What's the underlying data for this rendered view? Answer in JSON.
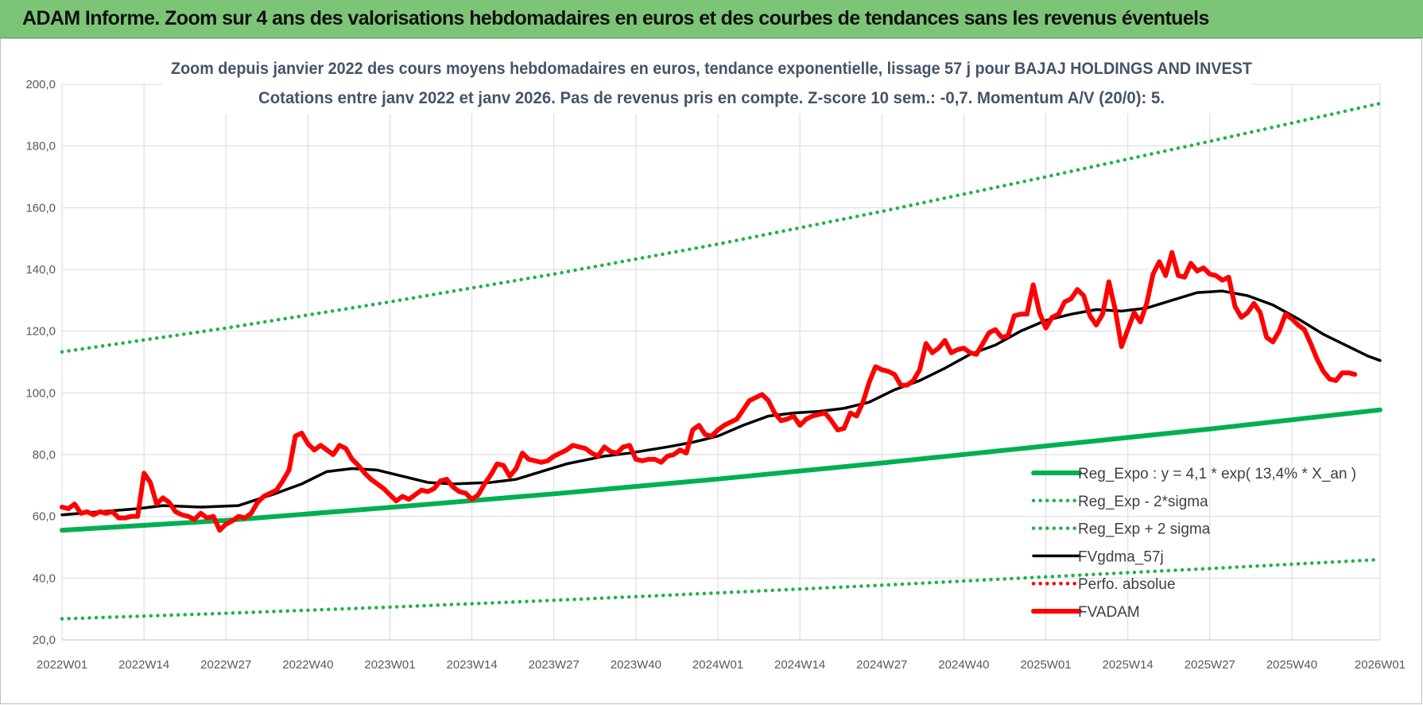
{
  "banner": {
    "title": "ADAM Informe. Zoom sur 4 ans des valorisations hebdomadaires en euros et des courbes de tendances sans les revenus éventuels"
  },
  "colors": {
    "banner": "#7cc576",
    "trend": "#00b050",
    "band": "#22b24c",
    "moving_average": "#000000",
    "price": "#ff0000",
    "grid": "#d9d9d9"
  },
  "chart_data": {
    "type": "line",
    "title": "Zoom depuis janvier 2022 des cours moyens hebdomadaires en euros, tendance exponentielle, lissage 57 j pour BAJAJ HOLDINGS AND INVEST",
    "subtitle": "Cotations entre janv 2022 et janv 2026. Pas de revenus pris en compte. Z-score 10 sem.: -0,7. Momentum A/V (20/0): 5.",
    "xlabel": "",
    "ylabel": "",
    "x_unit": "weeks since 2022W01",
    "x_range": [
      0,
      209
    ],
    "ylim": [
      20,
      200
    ],
    "yticks": [
      "20,0",
      "40,0",
      "60,0",
      "80,0",
      "100,0",
      "120,0",
      "140,0",
      "160,0",
      "180,0",
      "200,0"
    ],
    "yticks_values": [
      20,
      40,
      60,
      80,
      100,
      120,
      140,
      160,
      180,
      200
    ],
    "xticks": [
      "2022W01",
      "2022W14",
      "2022W27",
      "2022W40",
      "2023W01",
      "2023W14",
      "2023W27",
      "2023W40",
      "2024W01",
      "2024W14",
      "2024W27",
      "2024W40",
      "2025W01",
      "2025W14",
      "2025W27",
      "2025W40",
      "2026W01"
    ],
    "xticks_positions": [
      0,
      13,
      26,
      39,
      52,
      65,
      78,
      91,
      104,
      117,
      130,
      143,
      156,
      169,
      182,
      195,
      209
    ],
    "grid": true,
    "legend_position": "bottom-right",
    "series": [
      {
        "name": "Reg_Expo : y = 4,1 * exp( 13,4% *  X_an )",
        "style": "solid-thick",
        "color": "#00b050",
        "points": [
          [
            0,
            55.5
          ],
          [
            26,
            58.7
          ],
          [
            52,
            62.9
          ],
          [
            78,
            67.3
          ],
          [
            104,
            72.1
          ],
          [
            130,
            77.3
          ],
          [
            156,
            82.8
          ],
          [
            182,
            88.3
          ],
          [
            209,
            94.5
          ]
        ]
      },
      {
        "name": "Reg_Exp - 2*sigma",
        "style": "dotted",
        "color": "#22b24c",
        "points": [
          [
            0,
            26.8
          ],
          [
            26,
            28.6
          ],
          [
            52,
            30.6
          ],
          [
            78,
            32.8
          ],
          [
            104,
            35.2
          ],
          [
            130,
            37.7
          ],
          [
            156,
            40.4
          ],
          [
            182,
            43.1
          ],
          [
            209,
            46.0
          ]
        ]
      },
      {
        "name": "Reg_Exp + 2 sigma",
        "style": "dotted",
        "color": "#22b24c",
        "points": [
          [
            0,
            113.3
          ],
          [
            26,
            121.0
          ],
          [
            52,
            129.5
          ],
          [
            78,
            138.5
          ],
          [
            104,
            148.2
          ],
          [
            130,
            158.8
          ],
          [
            156,
            170.0
          ],
          [
            182,
            181.5
          ],
          [
            209,
            193.8
          ]
        ]
      },
      {
        "name": "FVgdma_57j",
        "style": "solid",
        "color": "#000000",
        "points": [
          [
            0,
            60.5
          ],
          [
            6,
            61.5
          ],
          [
            12,
            62.5
          ],
          [
            16,
            63.5
          ],
          [
            22,
            63.0
          ],
          [
            28,
            63.5
          ],
          [
            34,
            67.5
          ],
          [
            38,
            70.5
          ],
          [
            42,
            74.5
          ],
          [
            46,
            75.5
          ],
          [
            50,
            75.0
          ],
          [
            54,
            73.0
          ],
          [
            58,
            71.0
          ],
          [
            62,
            70.5
          ],
          [
            68,
            71.0
          ],
          [
            72,
            72.0
          ],
          [
            76,
            74.5
          ],
          [
            80,
            77.0
          ],
          [
            86,
            79.5
          ],
          [
            90,
            80.5
          ],
          [
            96,
            82.5
          ],
          [
            100,
            84.0
          ],
          [
            104,
            86.0
          ],
          [
            108,
            89.5
          ],
          [
            112,
            92.5
          ],
          [
            116,
            93.5
          ],
          [
            120,
            94.0
          ],
          [
            124,
            95.0
          ],
          [
            128,
            97.0
          ],
          [
            132,
            101.0
          ],
          [
            136,
            104.0
          ],
          [
            140,
            108.0
          ],
          [
            144,
            112.5
          ],
          [
            148,
            115.5
          ],
          [
            152,
            120.0
          ],
          [
            156,
            123.5
          ],
          [
            160,
            125.5
          ],
          [
            164,
            127.0
          ],
          [
            168,
            126.5
          ],
          [
            172,
            127.5
          ],
          [
            176,
            130.0
          ],
          [
            180,
            132.5
          ],
          [
            184,
            133.0
          ],
          [
            188,
            131.5
          ],
          [
            192,
            128.5
          ],
          [
            196,
            124.0
          ],
          [
            200,
            119.0
          ],
          [
            204,
            115.0
          ],
          [
            207,
            112.0
          ],
          [
            209,
            110.5
          ]
        ]
      },
      {
        "name": "Perfo. absolue",
        "style": "dotted",
        "color": "#ff0000",
        "points": []
      },
      {
        "name": "FVADAM",
        "style": "solid-thick",
        "color": "#ff0000",
        "points": [
          [
            0,
            63
          ],
          [
            1,
            62.5
          ],
          [
            2,
            64
          ],
          [
            3,
            61
          ],
          [
            4,
            61.5
          ],
          [
            5,
            60.5
          ],
          [
            6,
            61.5
          ],
          [
            7,
            61
          ],
          [
            8,
            61.5
          ],
          [
            9,
            59.5
          ],
          [
            10,
            59.5
          ],
          [
            11,
            60
          ],
          [
            12,
            60
          ],
          [
            13,
            74
          ],
          [
            14,
            71
          ],
          [
            15,
            64
          ],
          [
            16,
            66
          ],
          [
            17,
            64.5
          ],
          [
            18,
            61.5
          ],
          [
            19,
            60.5
          ],
          [
            20,
            60
          ],
          [
            21,
            59
          ],
          [
            22,
            61
          ],
          [
            23,
            59.5
          ],
          [
            24,
            60
          ],
          [
            25,
            55.5
          ],
          [
            26,
            57.5
          ],
          [
            27,
            58.5
          ],
          [
            28,
            60
          ],
          [
            29,
            59.5
          ],
          [
            30,
            61
          ],
          [
            31,
            64.5
          ],
          [
            32,
            66.5
          ],
          [
            33,
            67.5
          ],
          [
            34,
            68.5
          ],
          [
            35,
            71.5
          ],
          [
            36,
            75
          ],
          [
            37,
            86
          ],
          [
            38,
            87
          ],
          [
            39,
            83.5
          ],
          [
            40,
            81.5
          ],
          [
            41,
            83
          ],
          [
            42,
            81.5
          ],
          [
            43,
            80
          ],
          [
            44,
            83
          ],
          [
            45,
            82
          ],
          [
            46,
            78.5
          ],
          [
            47,
            76.5
          ],
          [
            48,
            74
          ],
          [
            49,
            72
          ],
          [
            50,
            70.5
          ],
          [
            51,
            69
          ],
          [
            52,
            67
          ],
          [
            53,
            65
          ],
          [
            54,
            66.5
          ],
          [
            55,
            65.5
          ],
          [
            56,
            67
          ],
          [
            57,
            68.5
          ],
          [
            58,
            68
          ],
          [
            59,
            69
          ],
          [
            60,
            71.5
          ],
          [
            61,
            72
          ],
          [
            62,
            69.5
          ],
          [
            63,
            68
          ],
          [
            64,
            67.5
          ],
          [
            65,
            65.5
          ],
          [
            66,
            67
          ],
          [
            67,
            70.5
          ],
          [
            68,
            73.5
          ],
          [
            69,
            77
          ],
          [
            70,
            76.5
          ],
          [
            71,
            73
          ],
          [
            72,
            75.5
          ],
          [
            73,
            80.5
          ],
          [
            74,
            78.5
          ],
          [
            75,
            78
          ],
          [
            76,
            77.5
          ],
          [
            77,
            78
          ],
          [
            78,
            79.5
          ],
          [
            79,
            80.5
          ],
          [
            80,
            81.5
          ],
          [
            81,
            83
          ],
          [
            82,
            82.5
          ],
          [
            83,
            82
          ],
          [
            84,
            80.5
          ],
          [
            85,
            79.5
          ],
          [
            86,
            82.5
          ],
          [
            87,
            81
          ],
          [
            88,
            80.5
          ],
          [
            89,
            82.5
          ],
          [
            90,
            83
          ],
          [
            91,
            78.5
          ],
          [
            92,
            78
          ],
          [
            93,
            78.5
          ],
          [
            94,
            78.5
          ],
          [
            95,
            77.5
          ],
          [
            96,
            79.5
          ],
          [
            97,
            80
          ],
          [
            98,
            81.5
          ],
          [
            99,
            80.5
          ],
          [
            100,
            88
          ],
          [
            101,
            89.5
          ],
          [
            102,
            86.5
          ],
          [
            103,
            86
          ],
          [
            104,
            88
          ],
          [
            105,
            89.5
          ],
          [
            106,
            90.5
          ],
          [
            107,
            91.5
          ],
          [
            108,
            94.5
          ],
          [
            109,
            97.5
          ],
          [
            110,
            98.5
          ],
          [
            111,
            99.5
          ],
          [
            112,
            97.5
          ],
          [
            113,
            93.5
          ],
          [
            114,
            91
          ],
          [
            115,
            91.5
          ],
          [
            116,
            92.5
          ],
          [
            117,
            89.5
          ],
          [
            118,
            91.5
          ],
          [
            119,
            92.5
          ],
          [
            120,
            93
          ],
          [
            121,
            93.5
          ],
          [
            122,
            91
          ],
          [
            123,
            88
          ],
          [
            124,
            88.5
          ],
          [
            125,
            93.5
          ],
          [
            126,
            92.5
          ],
          [
            127,
            97
          ],
          [
            128,
            103.5
          ],
          [
            129,
            108.5
          ],
          [
            130,
            107.5
          ],
          [
            131,
            107
          ],
          [
            132,
            106
          ],
          [
            133,
            102.5
          ],
          [
            134,
            102.5
          ],
          [
            135,
            104
          ],
          [
            136,
            107.5
          ],
          [
            137,
            116
          ],
          [
            138,
            113
          ],
          [
            139,
            114.5
          ],
          [
            140,
            117
          ],
          [
            141,
            113
          ],
          [
            142,
            114
          ],
          [
            143,
            114.5
          ],
          [
            144,
            113
          ],
          [
            145,
            112.5
          ],
          [
            146,
            116
          ],
          [
            147,
            119.5
          ],
          [
            148,
            120.5
          ],
          [
            149,
            118
          ],
          [
            150,
            118.5
          ],
          [
            151,
            125
          ],
          [
            152,
            125.5
          ],
          [
            153,
            125.5
          ],
          [
            154,
            135
          ],
          [
            155,
            126
          ],
          [
            156,
            121
          ],
          [
            157,
            124.5
          ],
          [
            158,
            125.5
          ],
          [
            159,
            129.5
          ],
          [
            160,
            130.5
          ],
          [
            161,
            133.5
          ],
          [
            162,
            131.5
          ],
          [
            163,
            125
          ],
          [
            164,
            122
          ],
          [
            165,
            125.5
          ],
          [
            166,
            136
          ],
          [
            167,
            127
          ],
          [
            168,
            115
          ],
          [
            169,
            120.5
          ],
          [
            170,
            126
          ],
          [
            171,
            123
          ],
          [
            172,
            129
          ],
          [
            173,
            138.5
          ],
          [
            174,
            142.5
          ],
          [
            175,
            138
          ],
          [
            176,
            145.5
          ],
          [
            177,
            138
          ],
          [
            178,
            137.5
          ],
          [
            179,
            142
          ],
          [
            180,
            139.5
          ],
          [
            181,
            140.5
          ],
          [
            182,
            138.5
          ],
          [
            183,
            138
          ],
          [
            184,
            136.5
          ],
          [
            185,
            137.5
          ],
          [
            186,
            128
          ],
          [
            187,
            124.5
          ],
          [
            188,
            126
          ],
          [
            189,
            129
          ],
          [
            190,
            126
          ],
          [
            191,
            118
          ],
          [
            192,
            116.5
          ],
          [
            193,
            120
          ],
          [
            194,
            125.5
          ],
          [
            195,
            124
          ],
          [
            196,
            122
          ],
          [
            197,
            120.5
          ],
          [
            198,
            116
          ],
          [
            199,
            111
          ],
          [
            200,
            107
          ],
          [
            201,
            104.5
          ],
          [
            202,
            104
          ],
          [
            203,
            106.5
          ],
          [
            204,
            106.5
          ],
          [
            205,
            106
          ]
        ]
      }
    ]
  }
}
